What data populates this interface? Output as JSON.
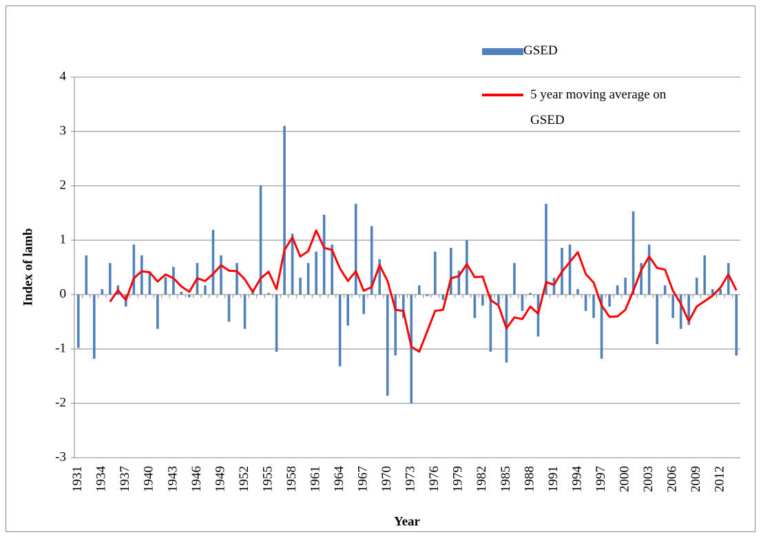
{
  "chart_data": {
    "type": "bar_line",
    "y_label": "Index of lamb",
    "x_label": "Year",
    "categories": [
      "1931",
      null,
      null,
      "1934",
      null,
      null,
      "1937",
      null,
      null,
      "1940",
      null,
      null,
      "1943",
      null,
      null,
      "1946",
      null,
      null,
      "1949",
      null,
      null,
      "1952",
      null,
      null,
      "1955",
      null,
      null,
      "1958",
      null,
      null,
      "1961",
      null,
      null,
      "1964",
      null,
      null,
      "1967",
      null,
      null,
      "1970",
      null,
      null,
      "1973",
      null,
      null,
      "1976",
      null,
      null,
      "1979",
      null,
      null,
      "1982",
      null,
      null,
      "1985",
      null,
      null,
      "1988",
      null,
      null,
      "1991",
      null,
      null,
      "1994",
      null,
      null,
      "1997",
      null,
      null,
      "2000",
      null,
      null,
      "2003",
      null,
      null,
      "2006",
      null,
      null,
      "2009",
      null,
      null,
      "2012",
      null,
      null
    ],
    "series": [
      {
        "name": "GSED",
        "color": "#4f81bd",
        "kind": "bar",
        "values": [
          -0.98,
          0.72,
          -1.18,
          0.1,
          0.58,
          0.17,
          -0.22,
          0.92,
          0.72,
          0.42,
          -0.63,
          0.32,
          0.51,
          0.05,
          -0.05,
          0.58,
          0.17,
          1.19,
          0.72,
          -0.5,
          0.58,
          -0.63,
          0.05,
          2.01,
          0.03,
          -1.05,
          3.1,
          1.12,
          0.31,
          0.58,
          0.79,
          1.47,
          0.92,
          -1.32,
          -0.57,
          1.67,
          -0.36,
          1.26,
          0.65,
          -1.86,
          -1.12,
          -0.43,
          -2.0,
          0.17,
          -0.03,
          0.79,
          -0.1,
          0.86,
          0.44,
          1.0,
          -0.43,
          -0.2,
          -1.05,
          -0.18,
          -1.25,
          0.58,
          -0.3,
          0.03,
          -0.77,
          1.67,
          0.31,
          0.86,
          0.92,
          0.1,
          -0.3,
          -0.43,
          -1.18,
          -0.22,
          0.17,
          0.31,
          1.53,
          0.58,
          0.92,
          -0.91,
          0.17,
          -0.43,
          -0.63,
          -0.56,
          0.31,
          0.72,
          0.1,
          0.1,
          0.58,
          -1.12
        ]
      },
      {
        "name": "5 year moving average on GSED",
        "color": "#ff0000",
        "kind": "line",
        "values": [
          null,
          null,
          null,
          null,
          -0.13,
          0.08,
          -0.1,
          0.3,
          0.43,
          0.41,
          0.24,
          0.37,
          0.3,
          0.15,
          0.05,
          0.3,
          0.25,
          0.38,
          0.54,
          0.44,
          0.43,
          0.28,
          0.05,
          0.3,
          0.42,
          0.1,
          0.82,
          1.05,
          0.7,
          0.8,
          1.18,
          0.86,
          0.82,
          0.48,
          0.25,
          0.43,
          0.07,
          0.14,
          0.54,
          0.25,
          -0.28,
          -0.3,
          -0.96,
          -1.05,
          -0.68,
          -0.3,
          -0.28,
          0.3,
          0.34,
          0.56,
          0.32,
          0.33,
          -0.1,
          -0.2,
          -0.62,
          -0.42,
          -0.45,
          -0.22,
          -0.35,
          0.23,
          0.18,
          0.42,
          0.6,
          0.78,
          0.38,
          0.22,
          -0.2,
          -0.41,
          -0.4,
          -0.28,
          0.07,
          0.45,
          0.7,
          0.49,
          0.46,
          0.07,
          -0.17,
          -0.49,
          -0.22,
          -0.12,
          -0.02,
          0.13,
          0.37,
          0.08
        ]
      }
    ],
    "ylim": [
      -3,
      4
    ],
    "yticks": [
      -3,
      -2,
      -1,
      0,
      1,
      2,
      3,
      4
    ],
    "grid": true
  }
}
